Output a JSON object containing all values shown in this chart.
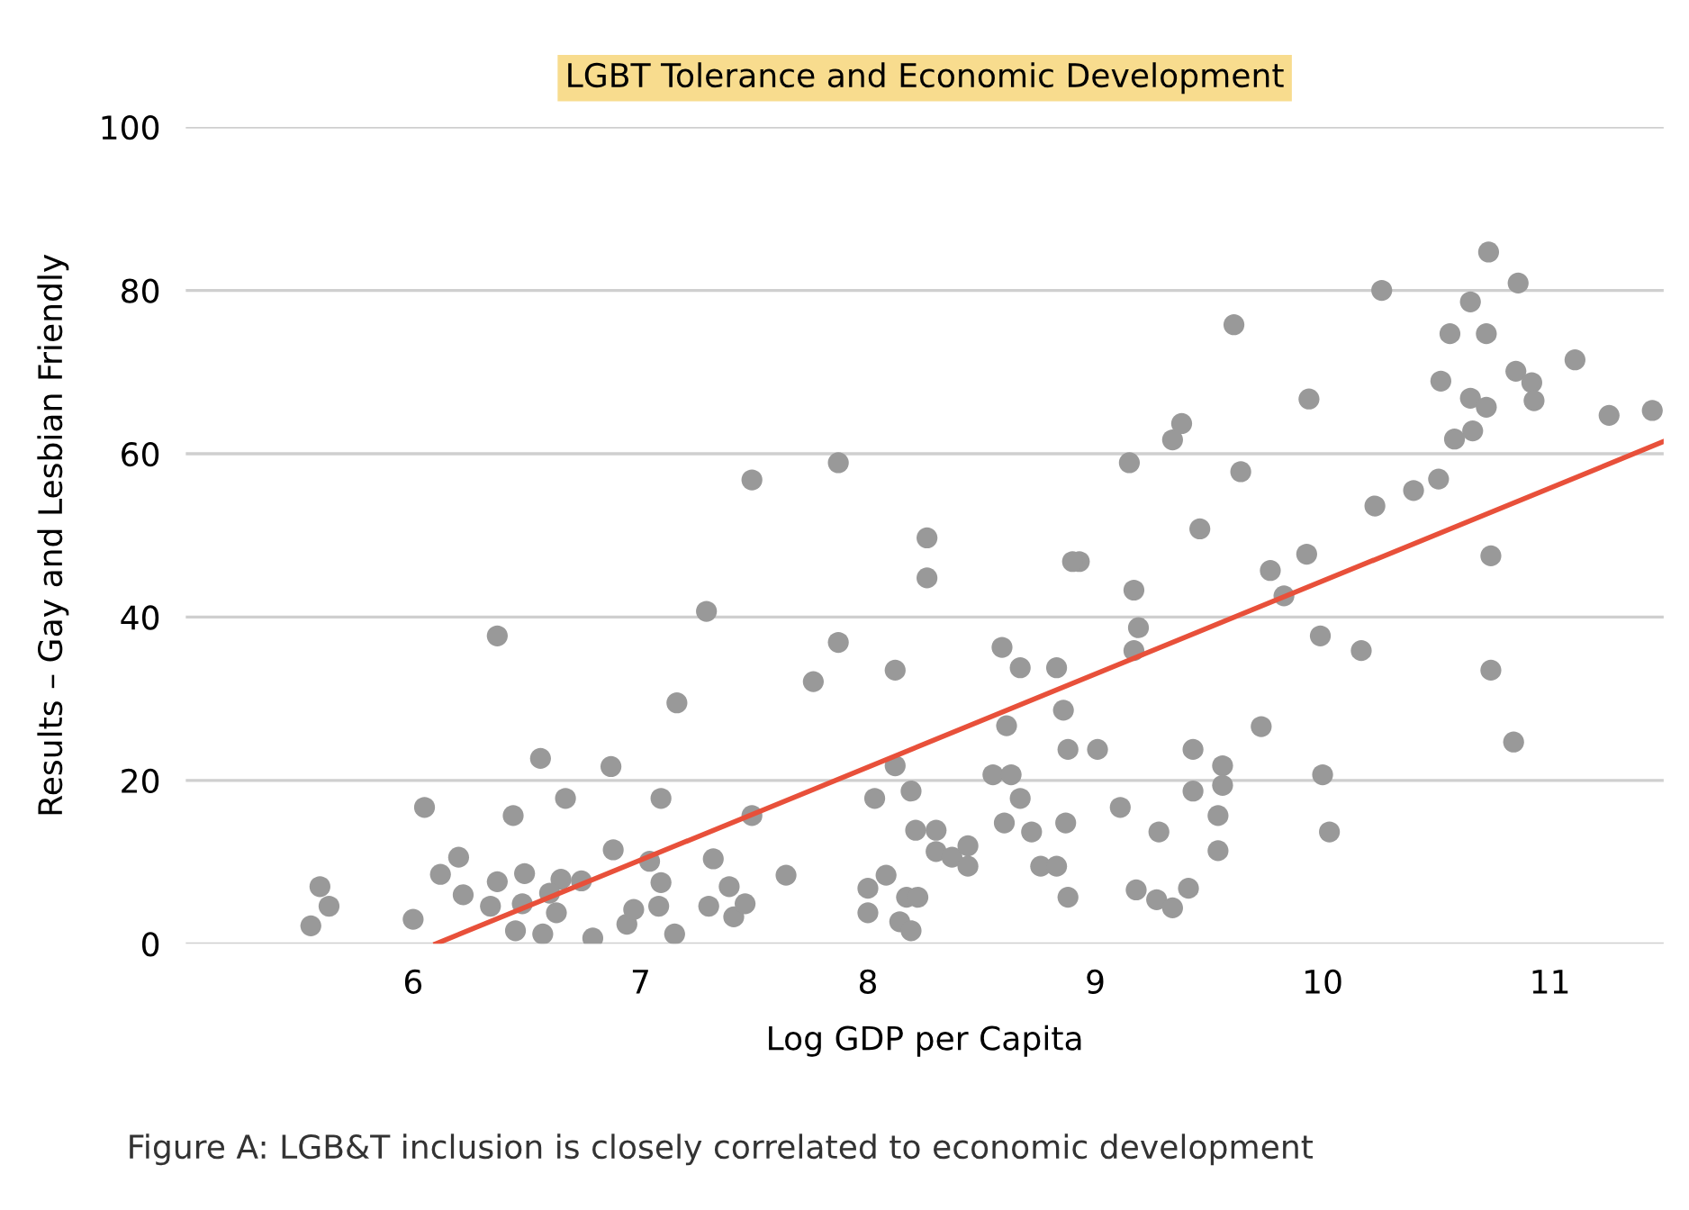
{
  "chart_data": {
    "type": "scatter",
    "title": "LGBT Tolerance and Economic Development",
    "xlabel": "Log GDP per Capita",
    "ylabel": "Results – Gay and Lesbian Friendly",
    "annotations": [
      "Figure A: LGB&T inclusion is closely correlated to economic development"
    ],
    "xlim": [
      5,
      11.5
    ],
    "xticks": [
      6,
      7,
      8,
      9,
      10,
      11
    ],
    "ylim": [
      0,
      100
    ],
    "yticks": [
      0,
      20,
      40,
      60,
      80,
      100
    ],
    "grid": "y",
    "series": [
      {
        "marker": "circle",
        "color": "#999999",
        "x": [
          7.29,
          6.37,
          7.16,
          6.56,
          6.87,
          6.67,
          7.09,
          6.05,
          6.44,
          6.2,
          6.12,
          6.88,
          7.04,
          7.32,
          5.59,
          5.63,
          5.55,
          6.0,
          6.22,
          6.37,
          6.49,
          6.65,
          6.74,
          6.6,
          6.34,
          6.48,
          6.63,
          6.45,
          6.57,
          6.79,
          6.94,
          6.97,
          7.09,
          7.08,
          7.15,
          7.39,
          7.3,
          7.41,
          7.46,
          7.49,
          7.49,
          7.87,
          8.26,
          8.26,
          8.93,
          8.9,
          9.15,
          9.34,
          9.38,
          9.64,
          9.46,
          9.17,
          9.19,
          9.17,
          7.87,
          7.76,
          8.12,
          8.59,
          8.67,
          8.83,
          8.86,
          8.61,
          8.88,
          9.01,
          9.43,
          9.56,
          9.56,
          9.43,
          9.54,
          9.54,
          9.28,
          9.11,
          8.12,
          8.03,
          8.19,
          8.55,
          8.63,
          8.67,
          8.6,
          8.72,
          8.87,
          8.21,
          8.3,
          8.3,
          8.37,
          8.44,
          8.44,
          8.76,
          8.83,
          7.64,
          8.0,
          8.08,
          8.0,
          8.14,
          8.19,
          8.17,
          8.22,
          8.88,
          9.18,
          9.27,
          9.34,
          9.41,
          10.73,
          10.86,
          10.26,
          10.65,
          10.56,
          10.72,
          9.61,
          11.11,
          10.85,
          10.92,
          10.93,
          10.52,
          10.65,
          10.72,
          9.94,
          11.26,
          11.45,
          10.66,
          10.58,
          10.51,
          10.4,
          10.23,
          9.93,
          9.77,
          9.83,
          10.74,
          9.99,
          10.17,
          10.74,
          10.84,
          9.73,
          10.0,
          10.03
        ],
        "values": [
          40.7,
          37.7,
          29.5,
          22.7,
          21.7,
          17.8,
          17.8,
          16.7,
          15.7,
          10.6,
          8.5,
          11.5,
          10.1,
          10.4,
          7.0,
          4.6,
          2.2,
          3.0,
          6.0,
          7.6,
          8.6,
          7.9,
          7.7,
          6.2,
          4.6,
          4.9,
          3.8,
          1.6,
          1.2,
          0.7,
          2.4,
          4.2,
          7.5,
          4.6,
          1.2,
          7.0,
          4.6,
          3.3,
          4.9,
          15.7,
          56.8,
          58.9,
          49.7,
          44.8,
          46.8,
          46.8,
          58.9,
          61.7,
          63.7,
          57.8,
          50.8,
          43.3,
          38.7,
          35.9,
          36.9,
          32.1,
          33.5,
          36.3,
          33.8,
          33.8,
          28.6,
          26.7,
          23.8,
          23.8,
          23.8,
          21.8,
          19.4,
          18.7,
          15.7,
          11.4,
          13.7,
          16.7,
          21.8,
          17.8,
          18.7,
          20.7,
          20.7,
          17.8,
          14.8,
          13.7,
          14.8,
          13.9,
          13.9,
          11.3,
          10.6,
          12.0,
          9.5,
          9.5,
          9.5,
          8.4,
          6.8,
          8.4,
          3.8,
          2.7,
          1.6,
          5.7,
          5.7,
          5.7,
          6.6,
          5.4,
          4.4,
          6.8,
          84.7,
          80.9,
          80.0,
          78.6,
          74.7,
          74.7,
          75.8,
          71.5,
          70.1,
          68.7,
          66.5,
          68.9,
          66.8,
          65.7,
          66.7,
          64.7,
          65.3,
          62.8,
          61.8,
          56.9,
          55.5,
          53.6,
          47.7,
          45.7,
          42.6,
          47.5,
          37.7,
          35.9,
          33.5,
          24.7,
          26.6,
          20.7,
          13.7
        ]
      },
      {
        "type": "line",
        "color": "#e8503a",
        "x": [
          6.1,
          11.5
        ],
        "values": [
          0,
          61.5
        ]
      }
    ]
  }
}
